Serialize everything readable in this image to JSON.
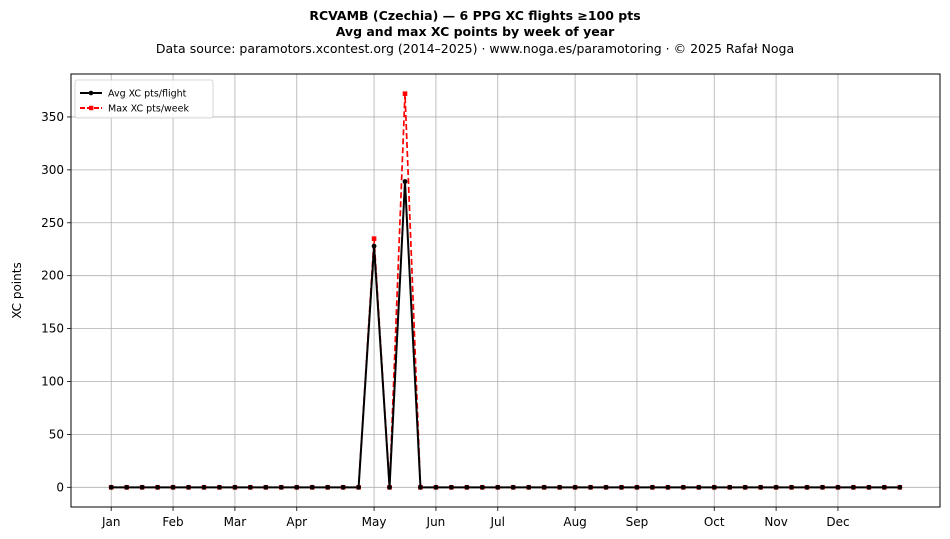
{
  "header": {
    "title_line1": "RCVAMB (Czechia)  —  6 PPG XC flights ≥100 pts",
    "title_line2": "Avg and max XC points by week of year",
    "source_line": "Data source: paramotors.xcontest.org (2014–2025)  ·  www.noga.es/paramotoring  ·  © 2025 Rafał Noga"
  },
  "chart_data": {
    "type": "line",
    "x": [
      1,
      2,
      3,
      4,
      5,
      6,
      7,
      8,
      9,
      10,
      11,
      12,
      13,
      14,
      15,
      16,
      17,
      18,
      19,
      20,
      21,
      22,
      23,
      24,
      25,
      26,
      27,
      28,
      29,
      30,
      31,
      32,
      33,
      34,
      35,
      36,
      37,
      38,
      39,
      40,
      41,
      42,
      43,
      44,
      45,
      46,
      47,
      48,
      49,
      50,
      51,
      52
    ],
    "series": [
      {
        "name": "Avg XC pts/flight",
        "color": "#000000",
        "style": "solid",
        "marker": "circle",
        "values": [
          0,
          0,
          0,
          0,
          0,
          0,
          0,
          0,
          0,
          0,
          0,
          0,
          0,
          0,
          0,
          0,
          0,
          228,
          0,
          289,
          0,
          0,
          0,
          0,
          0,
          0,
          0,
          0,
          0,
          0,
          0,
          0,
          0,
          0,
          0,
          0,
          0,
          0,
          0,
          0,
          0,
          0,
          0,
          0,
          0,
          0,
          0,
          0,
          0,
          0,
          0,
          0
        ]
      },
      {
        "name": "Max XC pts/week",
        "color": "#ff0000",
        "style": "dashed",
        "marker": "square",
        "values": [
          0,
          0,
          0,
          0,
          0,
          0,
          0,
          0,
          0,
          0,
          0,
          0,
          0,
          0,
          0,
          0,
          0,
          235,
          0,
          372,
          0,
          0,
          0,
          0,
          0,
          0,
          0,
          0,
          0,
          0,
          0,
          0,
          0,
          0,
          0,
          0,
          0,
          0,
          0,
          0,
          0,
          0,
          0,
          0,
          0,
          0,
          0,
          0,
          0,
          0,
          0,
          0
        ]
      }
    ],
    "xticks": [
      {
        "label": "Jan",
        "x": 1
      },
      {
        "label": "Feb",
        "x": 5
      },
      {
        "label": "Mar",
        "x": 9
      },
      {
        "label": "Apr",
        "x": 13
      },
      {
        "label": "May",
        "x": 18
      },
      {
        "label": "Jun",
        "x": 22
      },
      {
        "label": "Jul",
        "x": 26
      },
      {
        "label": "Aug",
        "x": 31
      },
      {
        "label": "Sep",
        "x": 35
      },
      {
        "label": "Oct",
        "x": 40
      },
      {
        "label": "Nov",
        "x": 44
      },
      {
        "label": "Dec",
        "x": 48
      }
    ],
    "yticks": [
      0,
      50,
      100,
      150,
      200,
      250,
      300,
      350
    ],
    "xlim": [
      -1.6,
      54.6
    ],
    "ylim": [
      -18.6,
      390.6
    ],
    "xlabel": "",
    "ylabel": "XC points",
    "grid": true,
    "legend_position": "top-left"
  }
}
